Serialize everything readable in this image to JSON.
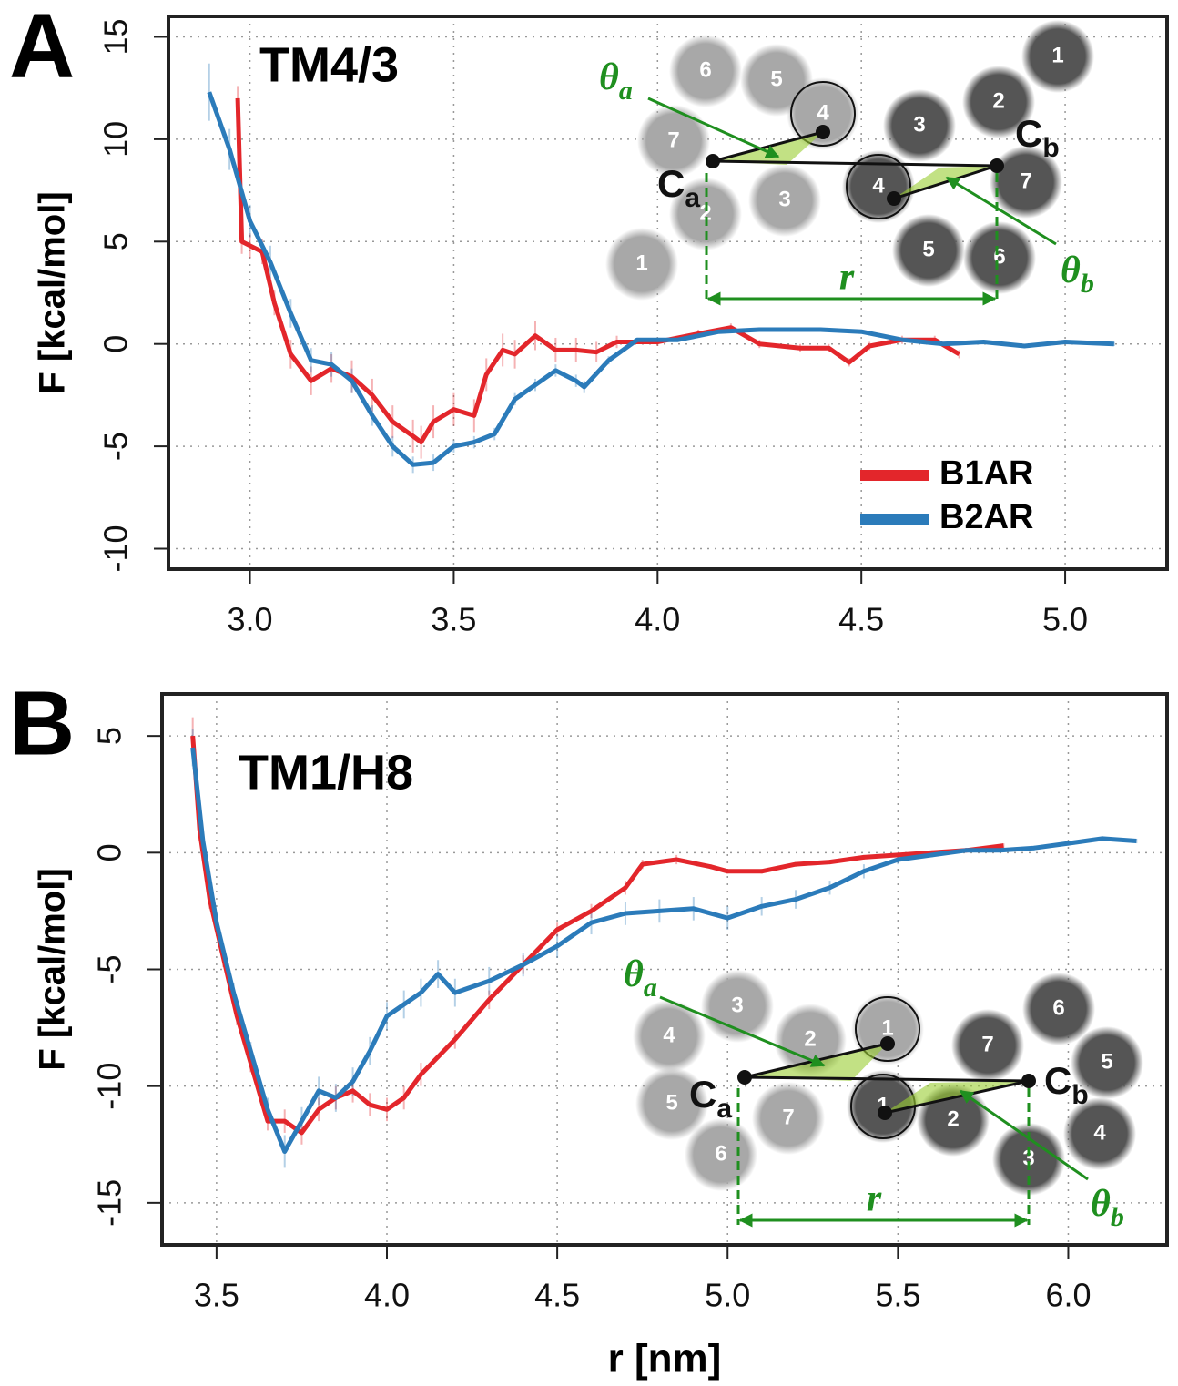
{
  "chart_data": [
    {
      "type": "line",
      "panel_label": "A",
      "title": "TM4/3",
      "ylabel": "F [kcal/mol]",
      "xlim": [
        2.8,
        5.25
      ],
      "ylim": [
        -11,
        16
      ],
      "xticks": [
        {
          "value": 3,
          "label": "3.0"
        },
        3.5,
        {
          "value": 4,
          "label": "4.0"
        },
        4.5,
        {
          "value": 5,
          "label": "5.0"
        }
      ],
      "yticks": [
        -10,
        -5,
        0,
        5,
        10,
        15
      ],
      "grid": true,
      "legend": "lower right",
      "series": [
        {
          "name": "B1AR",
          "color": "#e3262b",
          "x": [
            2.97,
            2.98,
            3.0,
            3.03,
            3.06,
            3.1,
            3.15,
            3.2,
            3.25,
            3.3,
            3.35,
            3.4,
            3.42,
            3.45,
            3.5,
            3.55,
            3.58,
            3.62,
            3.65,
            3.7,
            3.75,
            3.8,
            3.85,
            3.9,
            4.0,
            4.1,
            4.18,
            4.25,
            4.35,
            4.42,
            4.47,
            4.52,
            4.6,
            4.68,
            4.74
          ],
          "values": [
            12.0,
            5.0,
            4.8,
            4.5,
            2.0,
            -0.5,
            -1.8,
            -1.2,
            -1.6,
            -2.5,
            -3.8,
            -4.5,
            -4.8,
            -3.8,
            -3.2,
            -3.5,
            -1.5,
            -0.3,
            -0.5,
            0.4,
            -0.3,
            -0.3,
            -0.4,
            0.1,
            0.1,
            0.5,
            0.8,
            0.0,
            -0.2,
            -0.2,
            -0.9,
            -0.1,
            0.2,
            0.2,
            -0.5
          ],
          "errors": [
            0.6,
            0.6,
            0.6,
            0.6,
            0.6,
            0.7,
            0.7,
            0.7,
            0.8,
            0.8,
            0.8,
            0.8,
            0.8,
            0.8,
            0.8,
            0.8,
            0.8,
            0.8,
            0.7,
            0.7,
            0.6,
            0.6,
            0.5,
            0.3,
            0.2,
            0.2,
            0.2,
            0.2,
            0.2,
            0.2,
            0.2,
            0.2,
            0.2,
            0.2,
            0.2
          ]
        },
        {
          "name": "B2AR",
          "color": "#2b7bba",
          "x": [
            2.9,
            2.95,
            3.0,
            3.05,
            3.1,
            3.15,
            3.2,
            3.25,
            3.3,
            3.35,
            3.4,
            3.45,
            3.5,
            3.55,
            3.6,
            3.65,
            3.7,
            3.75,
            3.8,
            3.82,
            3.88,
            3.95,
            4.05,
            4.15,
            4.25,
            4.4,
            4.5,
            4.6,
            4.7,
            4.8,
            4.9,
            5.0,
            5.12
          ],
          "values": [
            12.3,
            9.5,
            6.0,
            4.0,
            1.5,
            -0.8,
            -1.0,
            -1.8,
            -3.5,
            -5.0,
            -5.9,
            -5.8,
            -5.0,
            -4.8,
            -4.4,
            -2.7,
            -2.0,
            -1.3,
            -1.8,
            -2.1,
            -0.8,
            0.2,
            0.2,
            0.6,
            0.7,
            0.7,
            0.6,
            0.2,
            0.0,
            0.1,
            -0.1,
            0.1,
            0.0
          ],
          "errors": [
            1.4,
            1.0,
            0.8,
            0.8,
            0.7,
            0.6,
            0.6,
            0.6,
            0.5,
            0.5,
            0.4,
            0.4,
            0.3,
            0.3,
            0.3,
            0.3,
            0.3,
            0.3,
            0.3,
            0.3,
            0.2,
            0.1,
            0.1,
            0.1,
            0.1,
            0.1,
            0.1,
            0.1,
            0.1,
            0.1,
            0.1,
            0.1,
            0.1
          ]
        }
      ],
      "inset": {
        "helices_a": [
          "6",
          "5",
          "7",
          "4",
          "2",
          "3",
          "1"
        ],
        "helices_b": [
          "1",
          "2",
          "3",
          "7",
          "4",
          "5",
          "6"
        ],
        "centroid_a": {
          "main": "C",
          "sub": "a"
        },
        "centroid_b": {
          "main": "C",
          "sub": "b"
        },
        "angle_a": {
          "main": "θ",
          "sub": "a"
        },
        "angle_b": {
          "main": "θ",
          "sub": "b"
        },
        "distance": "r"
      }
    },
    {
      "type": "line",
      "panel_label": "B",
      "title": "TM1/H8",
      "ylabel": "F [kcal/mol]",
      "xlabel": "r [nm]",
      "xlim": [
        3.34,
        6.29
      ],
      "ylim": [
        -16.8,
        6.8
      ],
      "xticks": [
        3.5,
        {
          "value": 4,
          "label": "4.0"
        },
        4.5,
        {
          "value": 5,
          "label": "5.0"
        },
        5.5,
        {
          "value": 6,
          "label": "6.0"
        }
      ],
      "yticks": [
        -15,
        -10,
        -5,
        0,
        5
      ],
      "grid": true,
      "series": [
        {
          "name": "B1AR",
          "color": "#e3262b",
          "x": [
            3.43,
            3.45,
            3.48,
            3.52,
            3.56,
            3.6,
            3.65,
            3.7,
            3.75,
            3.8,
            3.85,
            3.9,
            3.95,
            4.0,
            4.05,
            4.1,
            4.2,
            4.3,
            4.4,
            4.5,
            4.6,
            4.7,
            4.75,
            4.85,
            4.95,
            5.0,
            5.1,
            5.2,
            5.3,
            5.4,
            5.5,
            5.6,
            5.7,
            5.81
          ],
          "values": [
            5.0,
            1.0,
            -2.0,
            -4.5,
            -7.0,
            -9.0,
            -11.5,
            -11.5,
            -12.0,
            -11.0,
            -10.5,
            -10.2,
            -10.8,
            -11.0,
            -10.5,
            -9.5,
            -8.0,
            -6.3,
            -4.8,
            -3.3,
            -2.5,
            -1.5,
            -0.5,
            -0.3,
            -0.6,
            -0.8,
            -0.8,
            -0.5,
            -0.4,
            -0.2,
            -0.1,
            0.0,
            0.1,
            0.3
          ],
          "errors": [
            0.8,
            0.5,
            0.4,
            0.4,
            0.4,
            0.4,
            0.4,
            0.5,
            0.5,
            0.5,
            0.5,
            0.5,
            0.5,
            0.5,
            0.5,
            0.5,
            0.4,
            0.4,
            0.4,
            0.3,
            0.3,
            0.3,
            0.2,
            0.2,
            0.1,
            0.1,
            0.1,
            0.1,
            0.1,
            0.1,
            0.1,
            0.1,
            0.1,
            0.1
          ]
        },
        {
          "name": "B2AR",
          "color": "#2b7bba",
          "x": [
            3.43,
            3.46,
            3.5,
            3.55,
            3.6,
            3.65,
            3.7,
            3.75,
            3.8,
            3.85,
            3.9,
            3.95,
            4.0,
            4.05,
            4.1,
            4.15,
            4.2,
            4.3,
            4.4,
            4.5,
            4.6,
            4.7,
            4.8,
            4.9,
            5.0,
            5.1,
            5.2,
            5.3,
            5.4,
            5.5,
            5.6,
            5.7,
            5.8,
            5.9,
            6.0,
            6.1,
            6.2
          ],
          "values": [
            4.5,
            0.5,
            -3.0,
            -6.0,
            -8.5,
            -11.0,
            -12.8,
            -11.5,
            -10.2,
            -10.5,
            -9.8,
            -8.5,
            -7.0,
            -6.5,
            -6.0,
            -5.2,
            -6.0,
            -5.5,
            -4.8,
            -4.0,
            -3.0,
            -2.6,
            -2.5,
            -2.4,
            -2.8,
            -2.3,
            -2.0,
            -1.5,
            -0.8,
            -0.3,
            -0.1,
            0.1,
            0.1,
            0.2,
            0.4,
            0.6,
            0.5
          ],
          "errors": [
            0.8,
            0.5,
            0.4,
            0.4,
            0.4,
            0.5,
            0.7,
            0.6,
            0.6,
            0.6,
            0.6,
            0.6,
            0.6,
            0.6,
            0.6,
            0.6,
            0.6,
            0.6,
            0.5,
            0.5,
            0.5,
            0.5,
            0.5,
            0.5,
            0.5,
            0.4,
            0.4,
            0.3,
            0.3,
            0.2,
            0.1,
            0.1,
            0.1,
            0.1,
            0.1,
            0.1,
            0.1
          ]
        }
      ],
      "inset": {
        "helices_a": [
          "3",
          "4",
          "2",
          "1",
          "5",
          "7",
          "6"
        ],
        "helices_b": [
          "6",
          "7",
          "5",
          "1",
          "2",
          "4",
          "3"
        ],
        "centroid_a": {
          "main": "C",
          "sub": "a"
        },
        "centroid_b": {
          "main": "C",
          "sub": "b"
        },
        "angle_a": {
          "main": "θ",
          "sub": "a"
        },
        "angle_b": {
          "main": "θ",
          "sub": "b"
        },
        "distance": "r"
      }
    }
  ]
}
